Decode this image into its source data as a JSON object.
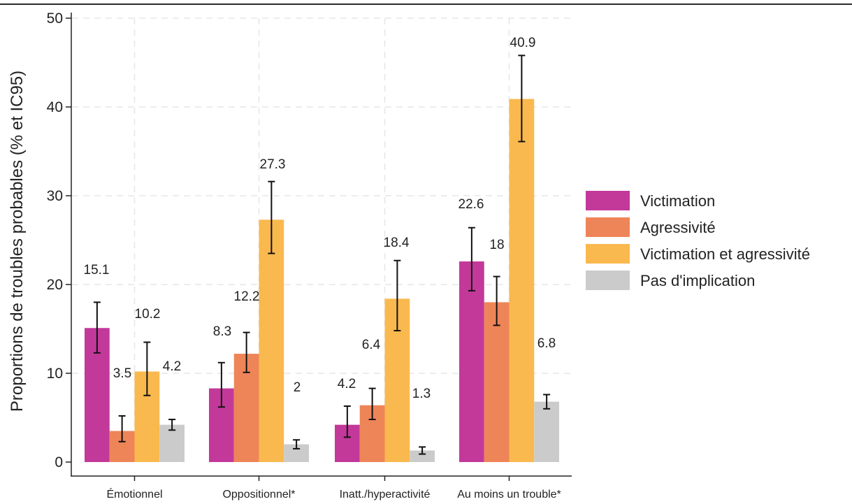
{
  "chart_data": {
    "type": "bar",
    "title": "",
    "xlabel": "",
    "ylabel": "Proportions de troubles probables (% et IC95)",
    "ylim": [
      0,
      50
    ],
    "yticks": [
      0,
      10,
      20,
      30,
      40,
      50
    ],
    "grid": true,
    "legend_position": "right",
    "categories": [
      "Émotionnel",
      "Oppositionnel*",
      "Inatt./hyperactivité",
      "Au moins un trouble*"
    ],
    "series": [
      {
        "name": "Victimation",
        "color": "#c2399a",
        "values": [
          15.1,
          8.3,
          4.2,
          22.6
        ],
        "ci_low": [
          12.3,
          6.2,
          2.8,
          19.3
        ],
        "ci_high": [
          18.0,
          11.2,
          6.3,
          26.4
        ],
        "labels": [
          "15.1",
          "8.3",
          "4.2",
          "22.6"
        ]
      },
      {
        "name": "Agressivité",
        "color": "#ee8558",
        "values": [
          3.5,
          12.2,
          6.4,
          18.0
        ],
        "ci_low": [
          2.3,
          10.1,
          4.8,
          15.4
        ],
        "ci_high": [
          5.2,
          14.6,
          8.3,
          20.9
        ],
        "labels": [
          "3.5",
          "12.2",
          "6.4",
          "18"
        ]
      },
      {
        "name": "Victimation et agressivité",
        "color": "#f9b94f",
        "values": [
          10.2,
          27.3,
          18.4,
          40.9
        ],
        "ci_low": [
          7.5,
          23.5,
          14.8,
          36.1
        ],
        "ci_high": [
          13.5,
          31.6,
          22.7,
          45.8
        ],
        "labels": [
          "10.2",
          "27.3",
          "18.4",
          "40.9"
        ]
      },
      {
        "name": "Pas d'implication",
        "color": "#cbcbcb",
        "values": [
          4.2,
          2.0,
          1.3,
          6.8
        ],
        "ci_low": [
          3.6,
          1.5,
          0.9,
          6.0
        ],
        "ci_high": [
          4.8,
          2.5,
          1.7,
          7.6
        ],
        "labels": [
          "4.2",
          "2",
          "1.3",
          "6.8"
        ]
      }
    ]
  }
}
